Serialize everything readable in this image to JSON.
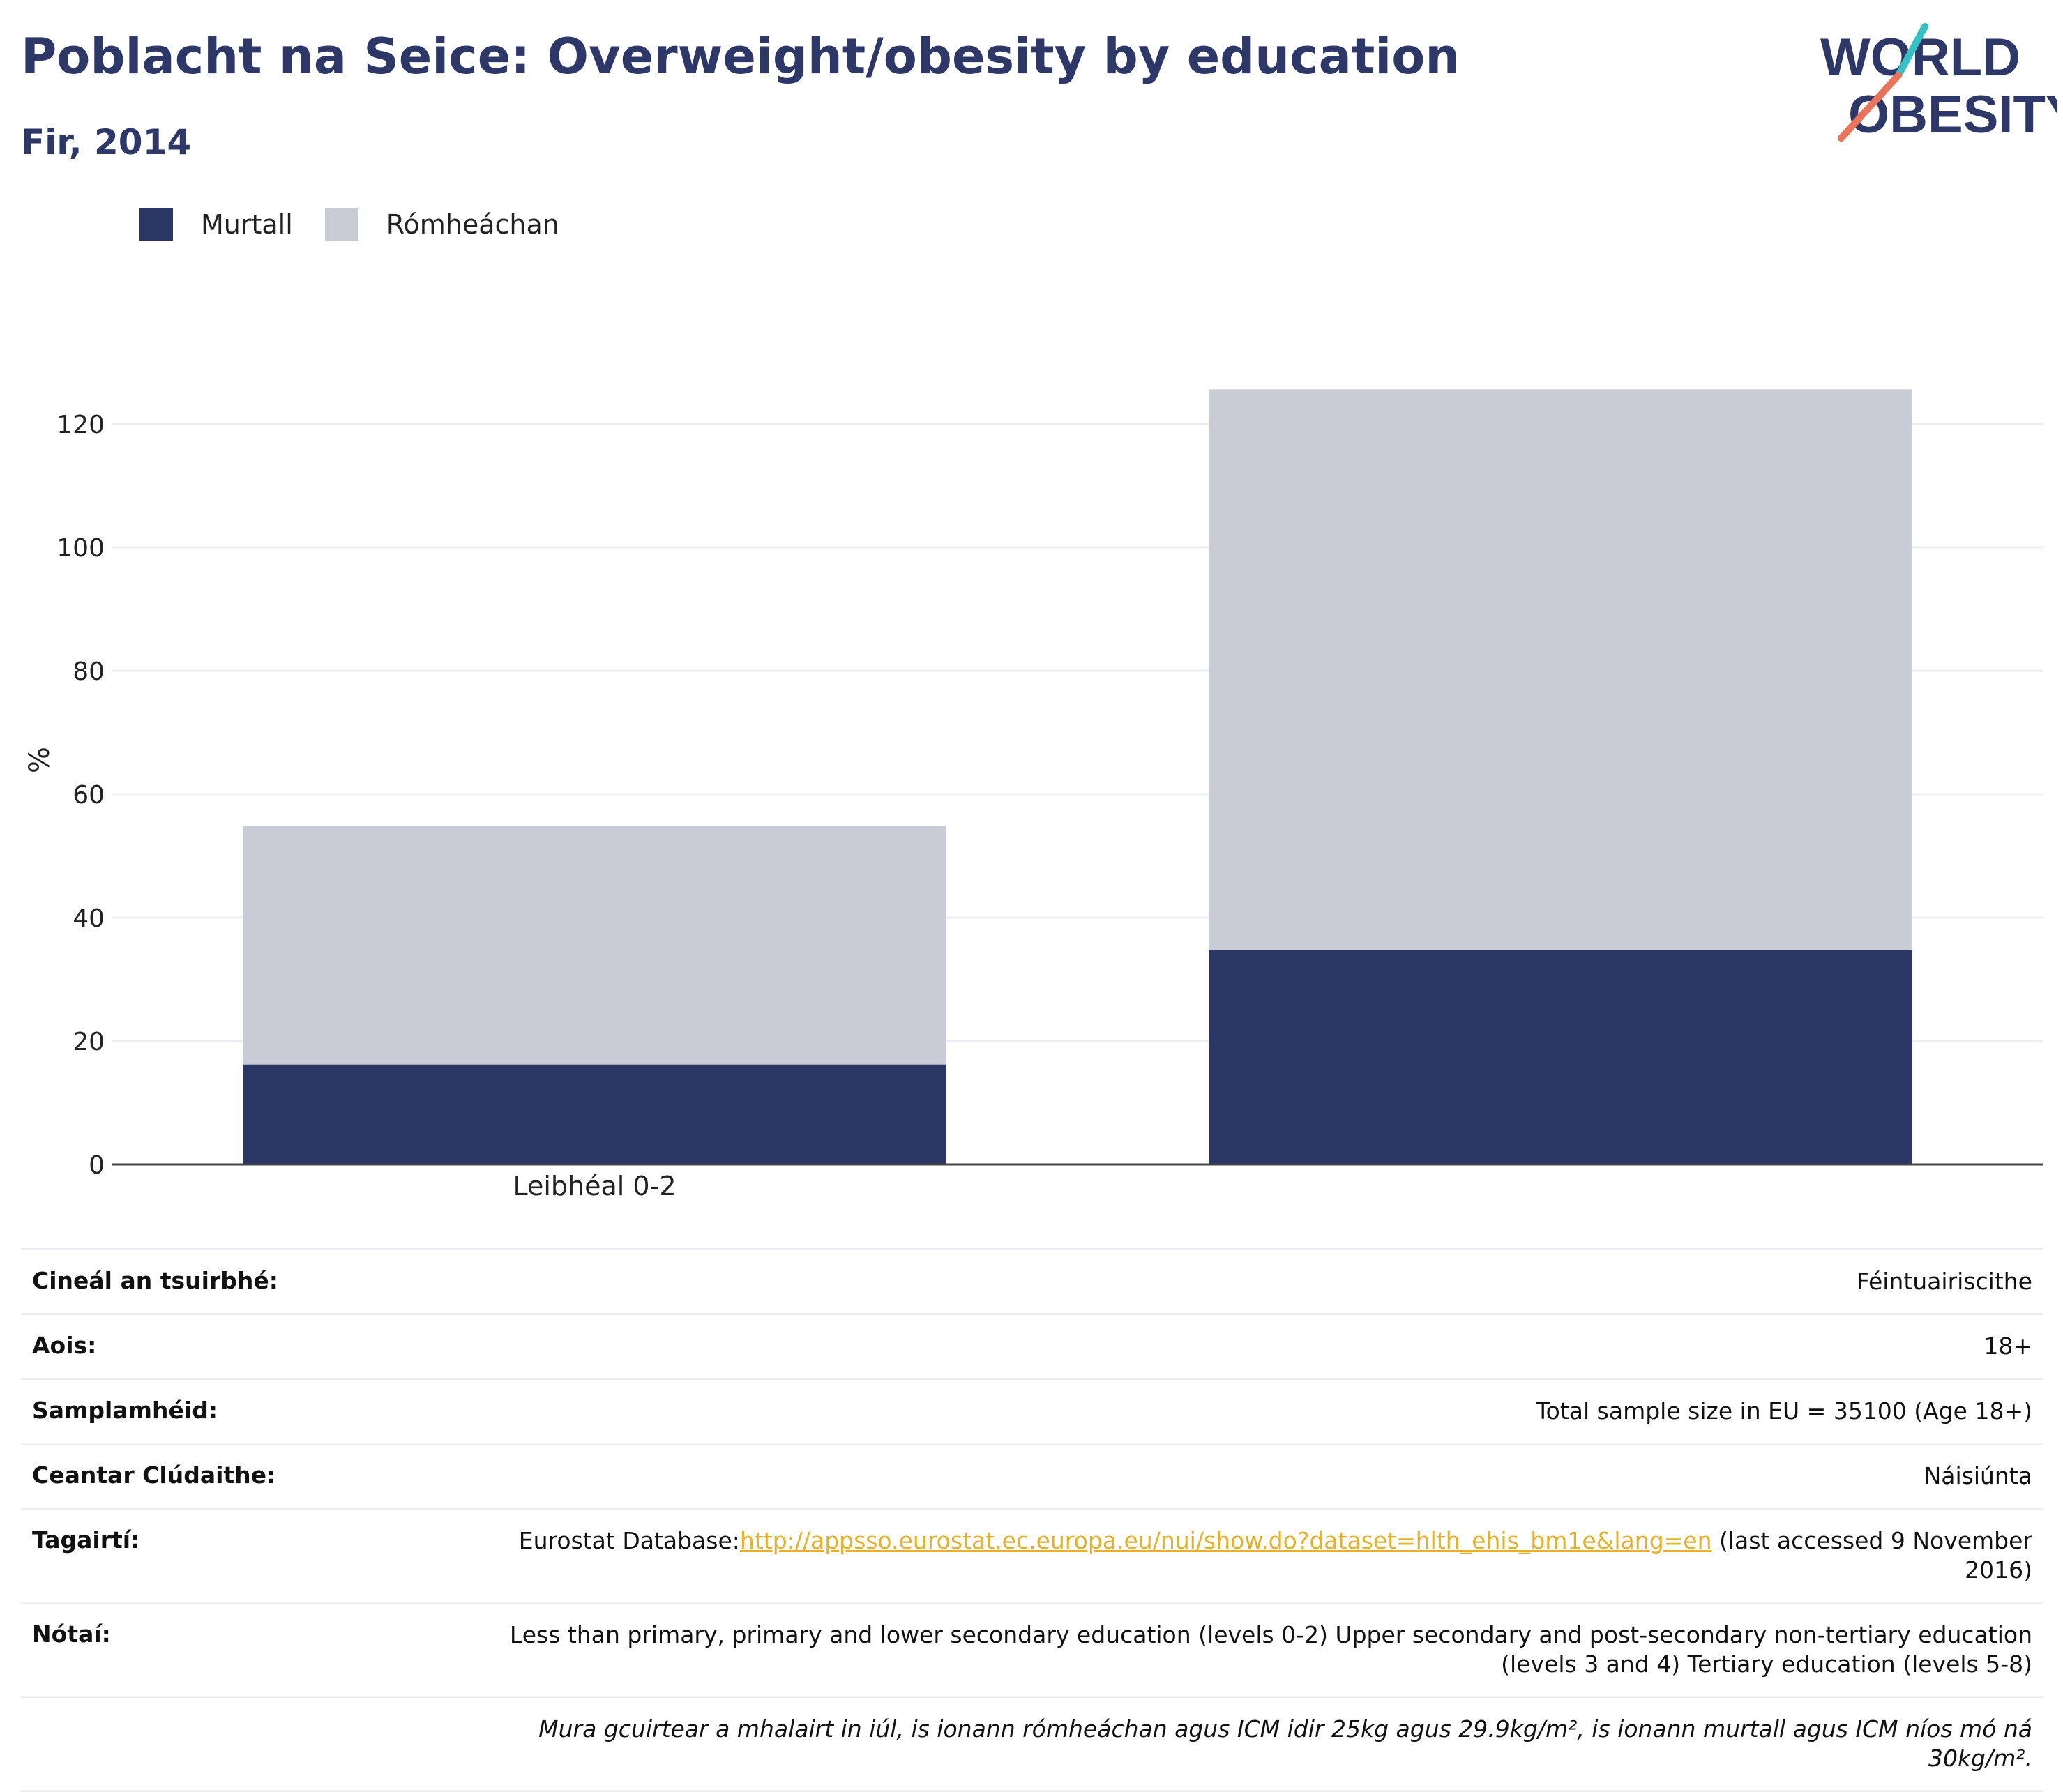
{
  "header": {
    "title": "Poblacht na Seice: Overweight/obesity by education",
    "subtitle": "Fir, 2014"
  },
  "logo": {
    "line1": "WORLD",
    "line2": "OBESITY"
  },
  "legend": [
    {
      "label": "Murtall",
      "color": "#2a3664"
    },
    {
      "label": "Rómheáchan",
      "color": "#c9cbd6"
    }
  ],
  "chart_data": {
    "type": "bar",
    "stacked": true,
    "categories": [
      "Leibhéal 0-2",
      ""
    ],
    "series": [
      {
        "name": "Murtall",
        "color": "#2a3664",
        "values": [
          16.2,
          34.8
        ]
      },
      {
        "name": "Rómheáchan",
        "color": "#c9cbd6",
        "values": [
          38.7,
          90.8
        ]
      }
    ],
    "ylabel": "%",
    "ylim": [
      0,
      130
    ],
    "yticks": [
      0,
      20,
      40,
      60,
      80,
      100,
      120
    ],
    "grid": true,
    "legend_position": "top-left"
  },
  "info": {
    "survey_type": {
      "label": "Cineál an tsuirbhé:",
      "value": "Féintuairiscithe"
    },
    "age": {
      "label": "Aois:",
      "value": "18+"
    },
    "sample": {
      "label": "Samplamhéid:",
      "value": "Total sample size in EU = 35100 (Age 18+)"
    },
    "coverage": {
      "label": "Ceantar Clúdaithe:",
      "value": "Náisiúnta"
    },
    "references": {
      "label": "Tagairtí:",
      "prefix": "Eurostat Database:",
      "link": "http://appsso.eurostat.ec.europa.eu/nui/show.do?dataset=hlth_ehis_bm1e&lang=en",
      "suffix": " (last accessed 9 November 2016)"
    },
    "notes": {
      "label": "Nótaí:",
      "value": "Less than primary, primary and lower secondary education (levels 0-2) Upper secondary and post-secondary non-tertiary education (levels 3 and 4) Tertiary education (levels 5-8)"
    },
    "footnote": "Mura gcuirtear a mhalairt in iúl, is ionann rómheáchan agus ICM idir 25kg agus 29.9kg/m², is ionann murtall agus ICM níos mó ná 30kg/m²."
  }
}
